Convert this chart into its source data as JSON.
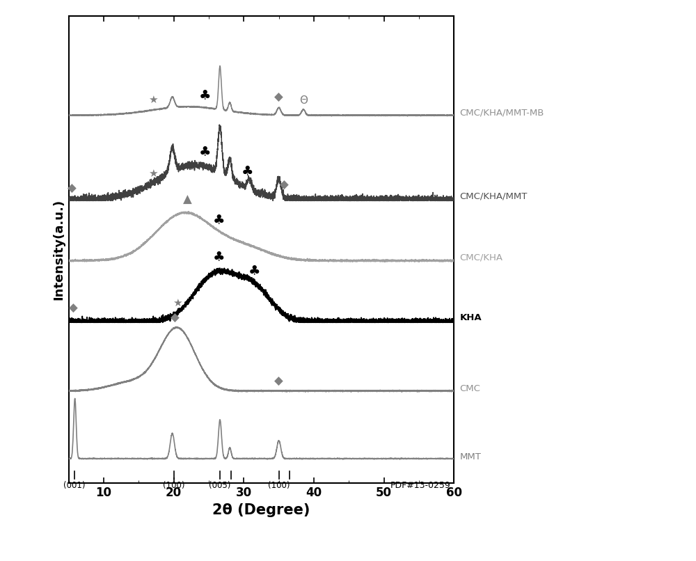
{
  "xlabel": "2θ (Degree)",
  "ylabel": "Intensity(a.u.)",
  "xlim": [
    5,
    60
  ],
  "background": "#ffffff",
  "curves": [
    {
      "name": "MMT",
      "color": "#808080",
      "lw": 1.2
    },
    {
      "name": "CMC",
      "color": "#808080",
      "lw": 1.2
    },
    {
      "name": "KHA",
      "color": "#000000",
      "lw": 1.3
    },
    {
      "name": "CMC/KHA",
      "color": "#a0a0a0",
      "lw": 1.2
    },
    {
      "name": "CMC/KHA/MMT",
      "color": "#404040",
      "lw": 1.1
    },
    {
      "name": "CMC/KHA/MMT-MB",
      "color": "#808080",
      "lw": 1.1
    }
  ],
  "label_colors": [
    "#808080",
    "#909090",
    "#000000",
    "#a0a0a0",
    "#505050",
    "#909090"
  ],
  "pdf_ticks": [
    {
      "x": 5.8,
      "label": "(001)"
    },
    {
      "x": 20.0,
      "label": "(100)"
    },
    {
      "x": 26.6,
      "label": "(005)"
    },
    {
      "x": 28.2,
      "label": ""
    },
    {
      "x": 35.0,
      "label": "(100)"
    },
    {
      "x": 36.5,
      "label": ""
    }
  ]
}
